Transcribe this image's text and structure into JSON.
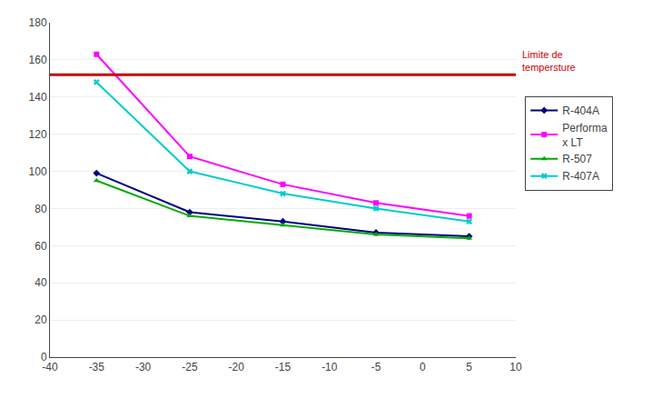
{
  "chart_data": {
    "type": "line",
    "x": [
      -35,
      -25,
      -15,
      -5,
      5
    ],
    "series": [
      {
        "name": "R-404A",
        "color": "#000080",
        "marker": "diamond",
        "values": [
          99,
          78,
          73,
          67,
          65
        ]
      },
      {
        "name": "Performa\nx LT",
        "color": "#FF00FF",
        "marker": "square",
        "values": [
          163,
          108,
          93,
          83,
          76
        ]
      },
      {
        "name": "R-507",
        "color": "#00AA00",
        "marker": "triangle-up",
        "values": [
          95,
          76,
          71,
          66,
          64
        ]
      },
      {
        "name": "R-407A",
        "color": "#00CCCC",
        "marker": "x",
        "values": [
          148,
          100,
          88,
          80,
          73
        ]
      }
    ],
    "hlines": [
      {
        "y": 152,
        "label": "Limite de\ntempersture",
        "color": "#CC0000"
      }
    ],
    "xlim": [
      -40,
      10
    ],
    "ylim": [
      0,
      180
    ],
    "xticks": [
      -40,
      -35,
      -30,
      -25,
      -20,
      -15,
      -10,
      -5,
      0,
      5,
      10
    ],
    "yticks": [
      0,
      20,
      40,
      60,
      80,
      100,
      120,
      140,
      160,
      180
    ],
    "grid": "y",
    "legend": "right"
  }
}
